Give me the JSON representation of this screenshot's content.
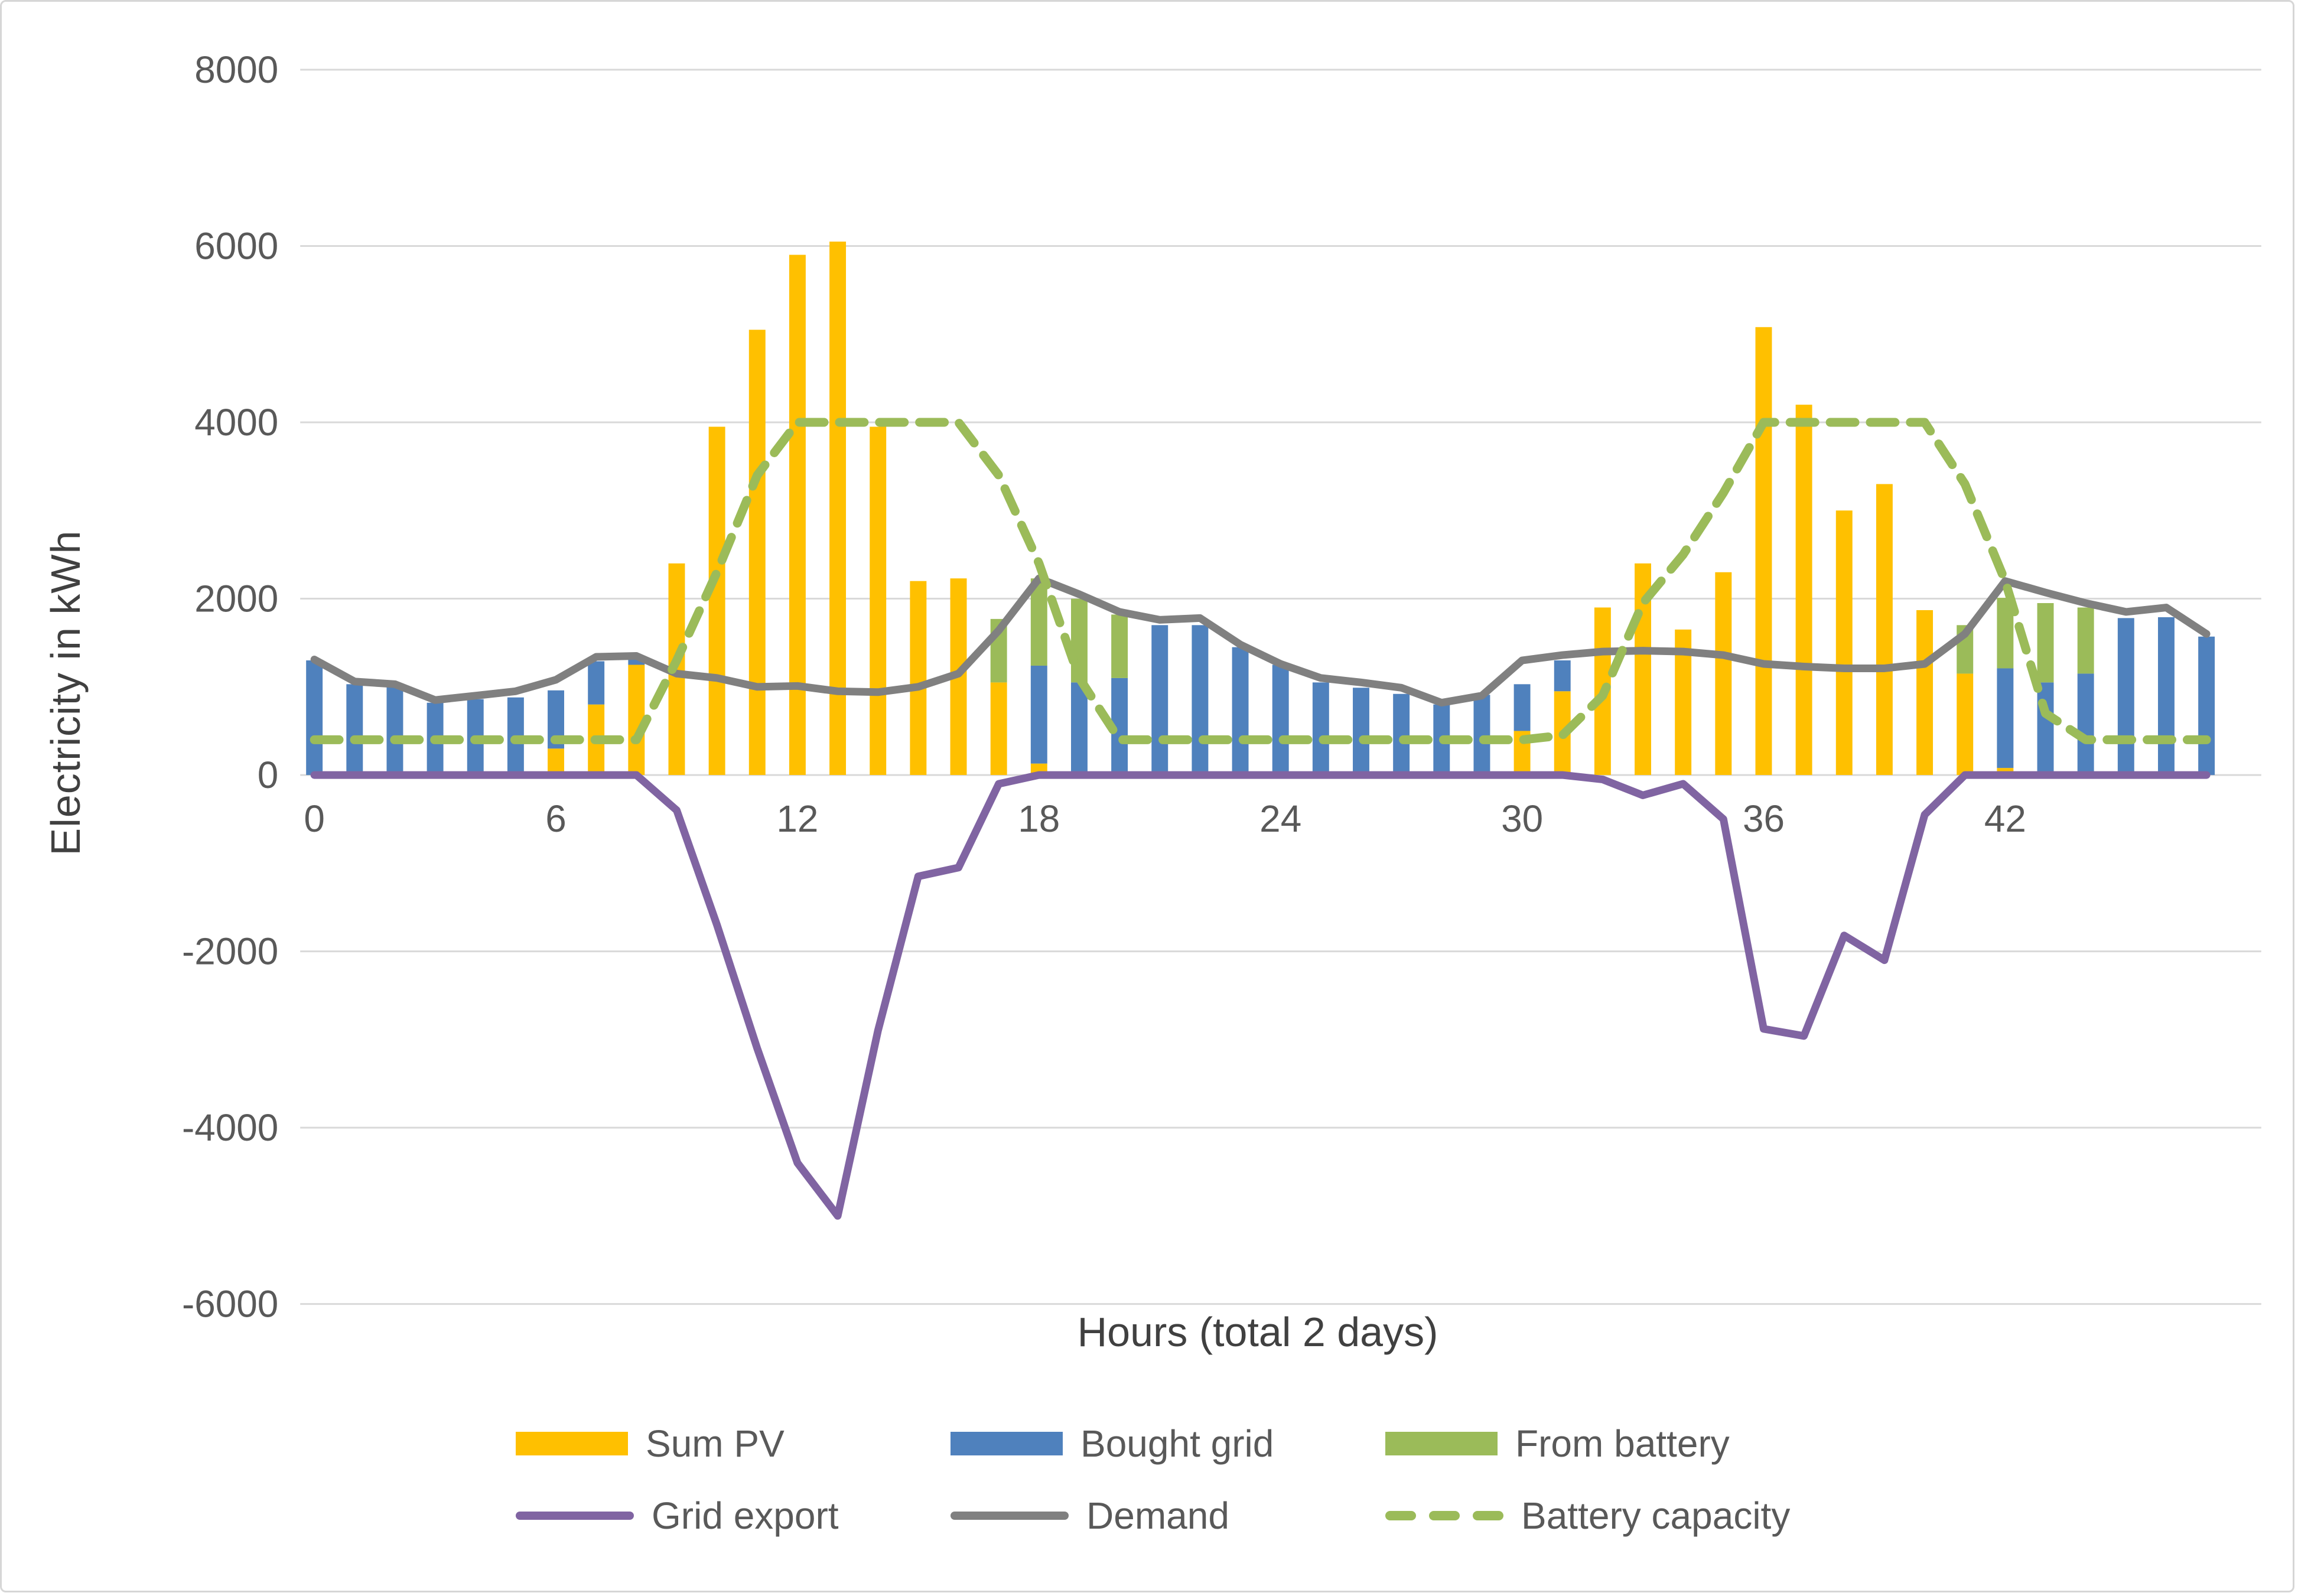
{
  "y_axis": {
    "title": "Electricity in kWh",
    "ticks": [
      8000,
      6000,
      4000,
      2000,
      0,
      -2000,
      -4000,
      -6000
    ]
  },
  "x_axis": {
    "title": "Hours (total 2 days)",
    "ticks": [
      0,
      6,
      12,
      18,
      24,
      30,
      36,
      42
    ]
  },
  "colors": {
    "sum_pv": "#FFC000",
    "bought_grid": "#4F81BD",
    "from_battery": "#9BBB59",
    "grid_export": "#8064A2",
    "demand": "#808080",
    "battery_capacity": "#9BBB59",
    "gridline": "#D9D9D9",
    "tick_text": "#595959",
    "title_text": "#404040"
  },
  "legend": {
    "items": [
      {
        "label": "Sum PV",
        "swatch": "box",
        "color": "#FFC000"
      },
      {
        "label": "Bought grid",
        "swatch": "box",
        "color": "#4F81BD"
      },
      {
        "label": "From battery",
        "swatch": "box",
        "color": "#9BBB59"
      },
      {
        "label": "Grid export",
        "swatch": "line",
        "color": "#8064A2"
      },
      {
        "label": "Demand",
        "swatch": "line",
        "color": "#808080"
      },
      {
        "label": "Battery capacity",
        "swatch": "dash",
        "color": "#9BBB59"
      }
    ]
  },
  "chart_data": {
    "type": "combo",
    "xlabel": "Hours (total 2 days)",
    "ylabel": "Electricity in kWh",
    "ylim": [
      -6000,
      8000
    ],
    "x": [
      0,
      1,
      2,
      3,
      4,
      5,
      6,
      7,
      8,
      9,
      10,
      11,
      12,
      13,
      14,
      15,
      16,
      17,
      18,
      19,
      20,
      21,
      22,
      23,
      24,
      25,
      26,
      27,
      28,
      29,
      30,
      31,
      32,
      33,
      34,
      35,
      36,
      37,
      38,
      39,
      40,
      41,
      42,
      43,
      44,
      45,
      46,
      47
    ],
    "grid": "horizontal",
    "legend_position": "bottom",
    "series": [
      {
        "name": "Sum PV",
        "type": "bar",
        "color": "#FFC000",
        "values": [
          0,
          0,
          0,
          0,
          0,
          0,
          300,
          800,
          1250,
          2400,
          3950,
          5050,
          5900,
          6050,
          3950,
          2200,
          2230,
          1050,
          130,
          0,
          0,
          0,
          0,
          0,
          0,
          0,
          0,
          0,
          0,
          40,
          500,
          950,
          1900,
          2400,
          1650,
          2300,
          5080,
          4200,
          3000,
          3300,
          1870,
          1150,
          80,
          0,
          0,
          0,
          0,
          0
        ]
      },
      {
        "name": "Bought grid",
        "type": "bar",
        "color": "#4F81BD",
        "values": [
          1300,
          1030,
          1010,
          820,
          860,
          880,
          660,
          490,
          100,
          0,
          0,
          0,
          0,
          0,
          0,
          0,
          0,
          0,
          1110,
          1050,
          1100,
          1700,
          1700,
          1450,
          1250,
          1050,
          990,
          920,
          800,
          870,
          530,
          350,
          0,
          0,
          0,
          0,
          0,
          0,
          0,
          0,
          0,
          0,
          1130,
          1050,
          1150,
          1780,
          1790,
          1570
        ]
      },
      {
        "name": "From battery",
        "type": "bar",
        "color": "#9BBB59",
        "values": [
          0,
          0,
          0,
          0,
          0,
          0,
          0,
          0,
          0,
          0,
          0,
          0,
          0,
          0,
          0,
          0,
          0,
          720,
          990,
          950,
          720,
          0,
          0,
          0,
          0,
          0,
          0,
          0,
          0,
          0,
          0,
          0,
          0,
          0,
          0,
          0,
          0,
          0,
          0,
          0,
          0,
          550,
          800,
          900,
          750,
          0,
          0,
          0
        ]
      },
      {
        "name": "Grid export",
        "type": "line",
        "color": "#8064A2",
        "values": [
          0,
          0,
          0,
          0,
          0,
          0,
          0,
          0,
          0,
          -400,
          -1700,
          -3100,
          -4400,
          -5000,
          -2900,
          -1150,
          -1050,
          -100,
          0,
          0,
          0,
          0,
          0,
          0,
          0,
          0,
          0,
          0,
          0,
          0,
          0,
          0,
          -50,
          -230,
          -100,
          -500,
          -2880,
          -2960,
          -1820,
          -2100,
          -450,
          0,
          0,
          0,
          0,
          0,
          0,
          0
        ]
      },
      {
        "name": "Demand",
        "type": "line",
        "color": "#808080",
        "values": [
          1310,
          1060,
          1030,
          850,
          900,
          950,
          1080,
          1340,
          1350,
          1150,
          1100,
          1000,
          1010,
          950,
          940,
          1000,
          1150,
          1640,
          2230,
          2050,
          1850,
          1760,
          1780,
          1480,
          1260,
          1100,
          1050,
          990,
          820,
          900,
          1300,
          1360,
          1400,
          1410,
          1400,
          1360,
          1260,
          1230,
          1210,
          1210,
          1260,
          1600,
          2200,
          2070,
          1950,
          1850,
          1900,
          1600
        ]
      },
      {
        "name": "Battery capacity",
        "type": "line",
        "dashed": true,
        "color": "#9BBB59",
        "values": [
          400,
          400,
          400,
          400,
          400,
          400,
          400,
          400,
          400,
          1300,
          2300,
          3400,
          4000,
          4000,
          4000,
          4000,
          4000,
          3400,
          2400,
          1100,
          400,
          400,
          400,
          400,
          400,
          400,
          400,
          400,
          400,
          400,
          400,
          450,
          900,
          1950,
          2500,
          3200,
          4000,
          4000,
          4000,
          4000,
          4000,
          3300,
          2200,
          700,
          400,
          400,
          400,
          400
        ]
      }
    ]
  }
}
